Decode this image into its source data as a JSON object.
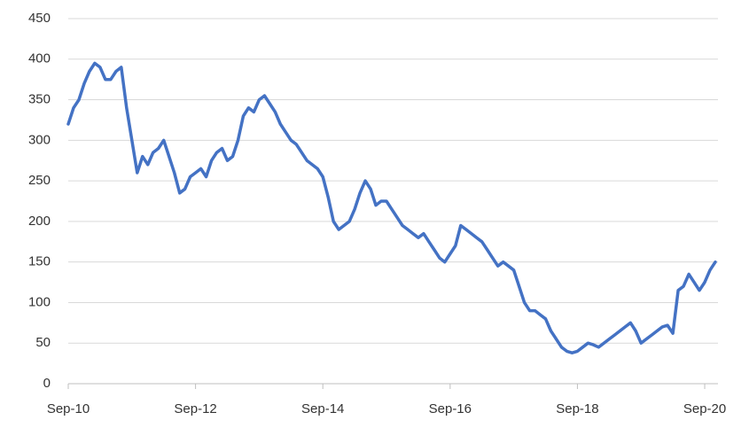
{
  "chart_data": {
    "type": "line",
    "color": "#4472c4",
    "grid": true,
    "x": [
      "2010-09",
      "2010-10",
      "2010-11",
      "2010-12",
      "2011-01",
      "2011-02",
      "2011-03",
      "2011-04",
      "2011-05",
      "2011-06",
      "2011-07",
      "2011-08",
      "2011-09",
      "2011-10",
      "2011-11",
      "2011-12",
      "2012-01",
      "2012-02",
      "2012-03",
      "2012-04",
      "2012-05",
      "2012-06",
      "2012-07",
      "2012-08",
      "2012-09",
      "2012-10",
      "2012-11",
      "2012-12",
      "2013-01",
      "2013-02",
      "2013-03",
      "2013-04",
      "2013-05",
      "2013-06",
      "2013-07",
      "2013-08",
      "2013-09",
      "2013-10",
      "2013-11",
      "2013-12",
      "2014-01",
      "2014-02",
      "2014-03",
      "2014-04",
      "2014-05",
      "2014-06",
      "2014-07",
      "2014-08",
      "2014-09",
      "2014-10",
      "2014-11",
      "2014-12",
      "2015-01",
      "2015-02",
      "2015-03",
      "2015-04",
      "2015-05",
      "2015-06",
      "2015-07",
      "2015-08",
      "2015-09",
      "2015-10",
      "2015-11",
      "2015-12",
      "2016-01",
      "2016-02",
      "2016-03",
      "2016-04",
      "2016-05",
      "2016-06",
      "2016-07",
      "2016-08",
      "2016-09",
      "2016-10",
      "2016-11",
      "2016-12",
      "2017-01",
      "2017-02",
      "2017-03",
      "2017-04",
      "2017-05",
      "2017-06",
      "2017-07",
      "2017-08",
      "2017-09",
      "2017-10",
      "2017-11",
      "2017-12",
      "2018-01",
      "2018-02",
      "2018-03",
      "2018-04",
      "2018-05",
      "2018-06",
      "2018-07",
      "2018-08",
      "2018-09",
      "2018-10",
      "2018-11",
      "2018-12",
      "2019-01",
      "2019-02",
      "2019-03",
      "2019-04",
      "2019-05",
      "2019-06",
      "2019-07",
      "2019-08",
      "2019-09",
      "2019-10",
      "2019-11",
      "2019-12",
      "2020-01",
      "2020-02",
      "2020-03",
      "2020-04",
      "2020-05",
      "2020-06",
      "2020-07",
      "2020-08",
      "2020-09",
      "2020-10",
      "2020-11"
    ],
    "values": [
      320,
      340,
      350,
      370,
      385,
      395,
      390,
      375,
      375,
      385,
      390,
      340,
      300,
      260,
      280,
      270,
      285,
      290,
      300,
      280,
      260,
      235,
      240,
      255,
      260,
      265,
      255,
      275,
      285,
      290,
      275,
      280,
      300,
      330,
      340,
      335,
      350,
      355,
      345,
      335,
      320,
      310,
      300,
      295,
      285,
      275,
      270,
      265,
      255,
      230,
      200,
      190,
      195,
      200,
      215,
      235,
      250,
      240,
      220,
      225,
      225,
      215,
      205,
      195,
      190,
      185,
      180,
      185,
      175,
      165,
      155,
      150,
      160,
      170,
      195,
      190,
      185,
      180,
      175,
      165,
      155,
      145,
      150,
      145,
      140,
      120,
      100,
      90,
      90,
      85,
      80,
      65,
      55,
      45,
      40,
      38,
      40,
      45,
      50,
      48,
      45,
      50,
      55,
      60,
      65,
      70,
      75,
      65,
      50,
      55,
      60,
      65,
      70,
      72,
      62,
      115,
      120,
      135,
      125,
      115,
      125,
      140,
      150
    ],
    "xlim": [
      "2010-09",
      "2020-11"
    ],
    "xticks": [
      {
        "value": "2010-09",
        "label": "Sep-10"
      },
      {
        "value": "2012-09",
        "label": "Sep-12"
      },
      {
        "value": "2014-09",
        "label": "Sep-14"
      },
      {
        "value": "2016-09",
        "label": "Sep-16"
      },
      {
        "value": "2018-09",
        "label": "Sep-18"
      },
      {
        "value": "2020-09",
        "label": "Sep-20"
      }
    ],
    "ylim": [
      0,
      450
    ],
    "yticks": [
      0,
      50,
      100,
      150,
      200,
      250,
      300,
      350,
      400,
      450
    ]
  }
}
